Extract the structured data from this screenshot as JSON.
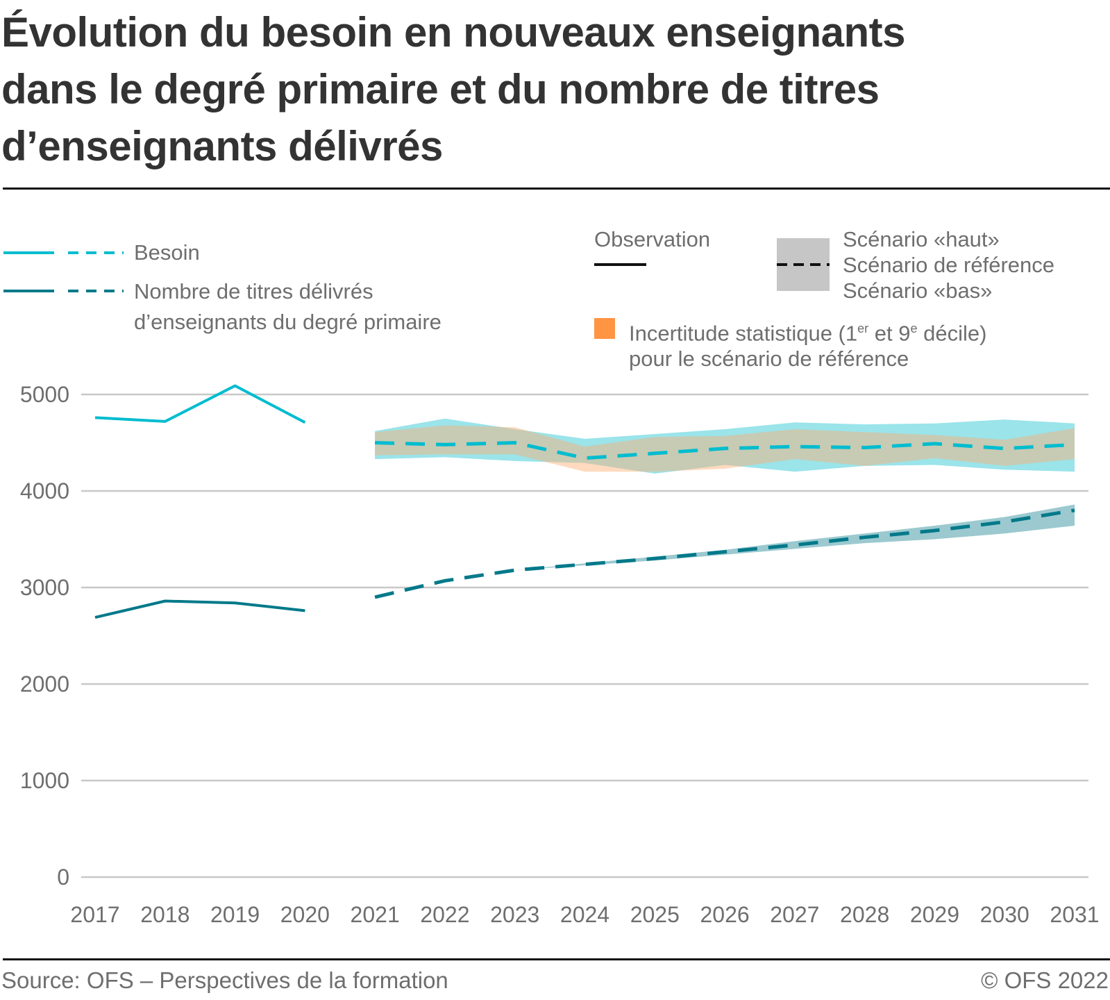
{
  "title_lines": [
    "Évolution du besoin en nouveaux enseignants",
    "dans le degré primaire et du nombre de titres",
    "d’enseignants délivrés"
  ],
  "legend": {
    "series": [
      {
        "label": "Besoin",
        "color": "#00bccf"
      },
      {
        "label_lines": [
          "Nombre de titres délivrés",
          "d’enseignants du degré primaire"
        ],
        "color": "#00798a"
      }
    ],
    "observation_label": "Observation",
    "scenario_labels": [
      "Scénario «haut»",
      "Scénario de référence",
      "Scénario «bas»"
    ],
    "uncertainty_label_lines": [
      "Incertitude statistique (1",
      "er",
      " et 9",
      "e",
      " décile)",
      "pour le scénario de référence"
    ],
    "uncertainty_color": "#ff9443"
  },
  "footer": {
    "source": "Source: OFS – Perspectives de la formation",
    "copyright": "© OFS 2022"
  },
  "chart_data": {
    "type": "line",
    "title": "Évolution du besoin en nouveaux enseignants dans le degré primaire et du nombre de titres d’enseignants délivrés",
    "xlabel": "",
    "ylabel": "",
    "x": [
      2017,
      2018,
      2019,
      2020,
      2021,
      2022,
      2023,
      2024,
      2025,
      2026,
      2027,
      2028,
      2029,
      2030,
      2031
    ],
    "x_tick_labels": [
      "2017",
      "2018",
      "2019",
      "2020",
      "2021",
      "2022",
      "2023",
      "2024",
      "2025",
      "2026",
      "2027",
      "2028",
      "2029",
      "2030",
      "2031"
    ],
    "y_ticks": [
      0,
      1000,
      2000,
      3000,
      4000,
      5000
    ],
    "y_tick_labels": [
      "0",
      "1000",
      "2000",
      "3000",
      "4000",
      "5000"
    ],
    "ylim": [
      0,
      5000
    ],
    "xlim": [
      2017,
      2031
    ],
    "grid": "horizontal",
    "legend_position": "top",
    "series": [
      {
        "name": "Besoin",
        "color": "#00bccf",
        "band_color": "#9ae4ea",
        "observed": {
          "x": [
            2017,
            2018,
            2019,
            2020
          ],
          "values": [
            4760,
            4720,
            5090,
            4710
          ]
        },
        "reference": {
          "x": [
            2021,
            2022,
            2023,
            2024,
            2025,
            2026,
            2027,
            2028,
            2029,
            2030,
            2031
          ],
          "values": [
            4500,
            4480,
            4500,
            4340,
            4390,
            4440,
            4460,
            4450,
            4490,
            4440,
            4480
          ]
        },
        "scenario_high": [
          4620,
          4750,
          4640,
          4540,
          4590,
          4640,
          4710,
          4690,
          4700,
          4740,
          4700
        ],
        "scenario_low": [
          4330,
          4350,
          4310,
          4290,
          4180,
          4270,
          4200,
          4260,
          4270,
          4220,
          4200
        ],
        "uncertainty_high": [
          4610,
          4680,
          4660,
          4460,
          4560,
          4570,
          4640,
          4610,
          4580,
          4530,
          4650
        ],
        "uncertainty_low": [
          4370,
          4380,
          4380,
          4200,
          4200,
          4230,
          4330,
          4260,
          4340,
          4260,
          4330
        ]
      },
      {
        "name": "Nombre de titres délivrés d’enseignants du degré primaire",
        "color": "#00798a",
        "band_color": "#9bc9cf",
        "observed": {
          "x": [
            2017,
            2018,
            2019,
            2020
          ],
          "values": [
            2690,
            2860,
            2840,
            2760
          ]
        },
        "reference": {
          "x": [
            2021,
            2022,
            2023,
            2024,
            2025,
            2026,
            2027,
            2028,
            2029,
            2030,
            2031
          ],
          "values": [
            2900,
            3070,
            3180,
            3240,
            3300,
            3370,
            3440,
            3520,
            3590,
            3680,
            3800
          ]
        },
        "scenario_high": [
          2900,
          3070,
          3180,
          3250,
          3320,
          3390,
          3480,
          3560,
          3640,
          3730,
          3860
        ],
        "scenario_low": [
          2900,
          3070,
          3180,
          3230,
          3280,
          3340,
          3400,
          3460,
          3500,
          3560,
          3640
        ]
      }
    ]
  }
}
